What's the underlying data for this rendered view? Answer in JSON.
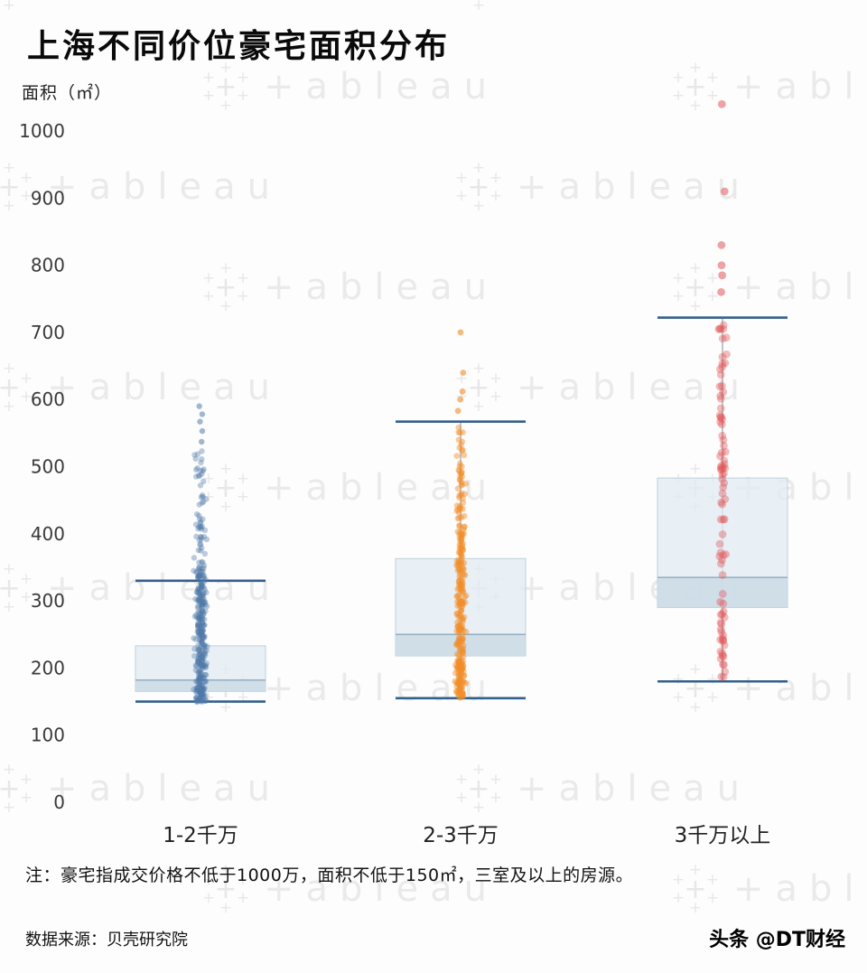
{
  "page": {
    "title": "上海不同价位豪宅面积分布",
    "y_axis_label": "面积（㎡）",
    "note": "注：豪宅指成交价格不低于1000万，面积不低于150㎡，三室及以上的房源。",
    "source": "数据来源：贝壳研究院",
    "credit": "头条 @DT财经",
    "watermark_text": "+ableau"
  },
  "chart_data": {
    "type": "scatter",
    "subtype": "boxplot-with-jittered-points",
    "title": "上海不同价位豪宅面积分布",
    "xlabel": "",
    "ylabel": "面积（㎡）",
    "ylim": [
      0,
      1000
    ],
    "ytick_step": 100,
    "grid": false,
    "legend": "none",
    "categories": [
      "1-2千万",
      "2-3千万",
      "3千万以上"
    ],
    "box_fill": "#e2ecf3",
    "box_band_fill": "#c9d9e5",
    "whisker_color": "#33608C",
    "series": [
      {
        "name": "1-2千万",
        "color": "#4E79A7",
        "dot_r": 3.2,
        "dot_opacity": 0.38,
        "jitter": 9,
        "box": {
          "whisker_low": 150,
          "q1": 165,
          "median": 182,
          "q3": 233,
          "whisker_high": 330
        },
        "clusters": [
          {
            "count": 270,
            "lo": 150,
            "hi": 340,
            "skew": 1.25
          },
          {
            "count": 75,
            "lo": 335,
            "hi": 525,
            "skew": 1.5
          }
        ],
        "outliers": [
          537,
          553,
          567,
          578,
          590
        ]
      },
      {
        "name": "2-3千万",
        "color": "#F28E2B",
        "dot_r": 3.4,
        "dot_opacity": 0.45,
        "jitter": 7,
        "box": {
          "whisker_low": 155,
          "q1": 218,
          "median": 250,
          "q3": 363,
          "whisker_high": 567
        },
        "clusters": [
          {
            "count": 240,
            "lo": 155,
            "hi": 400,
            "skew": 1.15
          },
          {
            "count": 55,
            "lo": 400,
            "hi": 560,
            "skew": 1.3
          }
        ],
        "outliers": [
          583,
          600,
          612,
          640,
          700
        ]
      },
      {
        "name": "3千万以上",
        "color": "#E15759",
        "dot_r": 4.4,
        "dot_opacity": 0.4,
        "jitter": 5,
        "box": {
          "whisker_low": 180,
          "q1": 290,
          "median": 335,
          "q3": 483,
          "whisker_high": 722
        },
        "clusters": [
          {
            "count": 62,
            "lo": 180,
            "hi": 545,
            "skew": 1.05
          },
          {
            "count": 26,
            "lo": 545,
            "hi": 720,
            "skew": 1.15
          }
        ],
        "outliers": [
          760,
          785,
          800,
          830,
          910,
          1040
        ]
      }
    ]
  }
}
